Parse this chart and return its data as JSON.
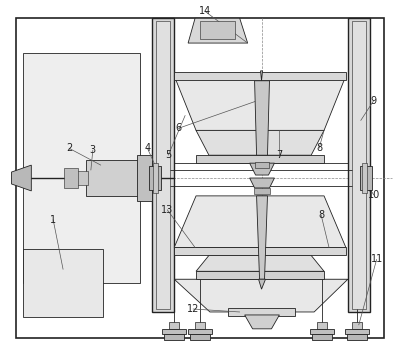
{
  "bg": "#ffffff",
  "lc": "#555555",
  "dc": "#222222",
  "lw": 0.6,
  "lw2": 1.0,
  "label_font": 7
}
